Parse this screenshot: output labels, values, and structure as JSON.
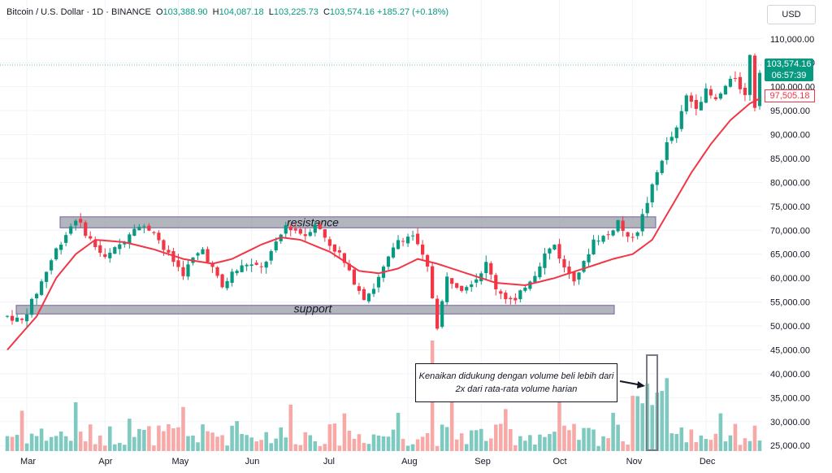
{
  "header": {
    "symbol": "Bitcoin / U.S. Dollar · 1D · BINANCE",
    "o_label": "O",
    "o_value": "103,388.90",
    "h_label": "H",
    "h_value": "104,087.18",
    "l_label": "L",
    "l_value": "103,225.73",
    "c_label": "C",
    "c_value": "103,574.16",
    "change": "+185.27 (+0.18%)"
  },
  "currency_button": "USD",
  "last_price": {
    "value": "103,574.16",
    "countdown": "06:57:39"
  },
  "ma_price": "97,505.18",
  "annotation": "Kenaikan didukung dengan volume beli lebih dari 2x dari rata-rata volume harian",
  "colors": {
    "up": "#089981",
    "down": "#f23645",
    "ma": "#f23645",
    "vol_up": "#7fcac0",
    "vol_down": "#f7a9a7",
    "zone": "#9ea3ab"
  },
  "chart_data": {
    "type": "candlestick",
    "x_labels": [
      "Mar",
      "Apr",
      "May",
      "Jun",
      "Jul",
      "Aug",
      "Sep",
      "Oct",
      "Nov",
      "Dec"
    ],
    "y_ticks": [
      25000,
      30000,
      35000,
      40000,
      45000,
      50000,
      55000,
      60000,
      65000,
      70000,
      75000,
      80000,
      85000,
      90000,
      95000,
      100000,
      105000,
      110000
    ],
    "y_tick_labels": [
      "25,000.00",
      "30,000.00",
      "35,000.00",
      "40,000.00",
      "45,000.00",
      "50,000.00",
      "55,000.00",
      "60,000.00",
      "65,000.00",
      "70,000.00",
      "75,000.00",
      "80,000.00",
      "85,000.00",
      "90,000.00",
      "95,000.00",
      "100,000.00",
      "105,000.00",
      "110,000.00"
    ],
    "ylim": [
      23000,
      112000
    ],
    "price_keypoints": [
      [
        0,
        52000
      ],
      [
        3,
        51000
      ],
      [
        6,
        57000
      ],
      [
        10,
        66000
      ],
      [
        14,
        72500
      ],
      [
        17,
        68000
      ],
      [
        20,
        64000
      ],
      [
        24,
        68000
      ],
      [
        26,
        71000
      ],
      [
        30,
        70000
      ],
      [
        32,
        66000
      ],
      [
        36,
        61000
      ],
      [
        38,
        64000
      ],
      [
        40,
        66000
      ],
      [
        44,
        58000
      ],
      [
        46,
        61000
      ],
      [
        49,
        63000
      ],
      [
        52,
        62000
      ],
      [
        55,
        67000
      ],
      [
        57,
        71000
      ],
      [
        61,
        69000
      ],
      [
        63,
        71500
      ],
      [
        66,
        67000
      ],
      [
        68,
        65000
      ],
      [
        70,
        61000
      ],
      [
        73,
        56000
      ],
      [
        75,
        58000
      ],
      [
        78,
        64000
      ],
      [
        80,
        68000
      ],
      [
        83,
        69000
      ],
      [
        86,
        62000
      ],
      [
        87,
        56000
      ],
      [
        88,
        50000
      ],
      [
        90,
        60000
      ],
      [
        93,
        58000
      ],
      [
        96,
        60000
      ],
      [
        98,
        63000
      ],
      [
        100,
        58000
      ],
      [
        102,
        56000
      ],
      [
        104,
        55000
      ],
      [
        106,
        58500
      ],
      [
        108,
        61000
      ],
      [
        110,
        65000
      ],
      [
        112,
        67000
      ],
      [
        114,
        62000
      ],
      [
        116,
        60000
      ],
      [
        118,
        63000
      ],
      [
        120,
        68000
      ],
      [
        123,
        69000
      ],
      [
        125,
        72000
      ],
      [
        127,
        68000
      ],
      [
        129,
        70000
      ],
      [
        131,
        76000
      ],
      [
        133,
        82000
      ],
      [
        135,
        88000
      ],
      [
        137,
        91000
      ],
      [
        139,
        98000
      ],
      [
        141,
        96000
      ],
      [
        143,
        99000
      ],
      [
        145,
        97000
      ],
      [
        147,
        100000
      ],
      [
        149,
        102000
      ],
      [
        151,
        98000
      ],
      [
        152,
        107000
      ],
      [
        153,
        96000
      ],
      [
        154,
        103574
      ]
    ],
    "ma_keypoints": [
      [
        0,
        45000
      ],
      [
        6,
        52000
      ],
      [
        10,
        60000
      ],
      [
        14,
        65000
      ],
      [
        18,
        68000
      ],
      [
        24,
        67500
      ],
      [
        30,
        66000
      ],
      [
        36,
        64000
      ],
      [
        42,
        63000
      ],
      [
        46,
        64000
      ],
      [
        52,
        67000
      ],
      [
        56,
        68500
      ],
      [
        60,
        68000
      ],
      [
        66,
        65500
      ],
      [
        72,
        61500
      ],
      [
        76,
        61000
      ],
      [
        80,
        62000
      ],
      [
        84,
        64000
      ],
      [
        88,
        63000
      ],
      [
        94,
        61000
      ],
      [
        100,
        59000
      ],
      [
        106,
        58500
      ],
      [
        112,
        60000
      ],
      [
        118,
        62000
      ],
      [
        124,
        64000
      ],
      [
        128,
        65000
      ],
      [
        132,
        68000
      ],
      [
        136,
        75000
      ],
      [
        140,
        82000
      ],
      [
        144,
        88000
      ],
      [
        148,
        93000
      ],
      [
        152,
        96500
      ],
      [
        154,
        97505
      ]
    ],
    "resistance_zone": [
      70500,
      72800
    ],
    "support_zone": [
      52500,
      54300
    ],
    "resistance_label": "resistance",
    "support_label": "support"
  }
}
